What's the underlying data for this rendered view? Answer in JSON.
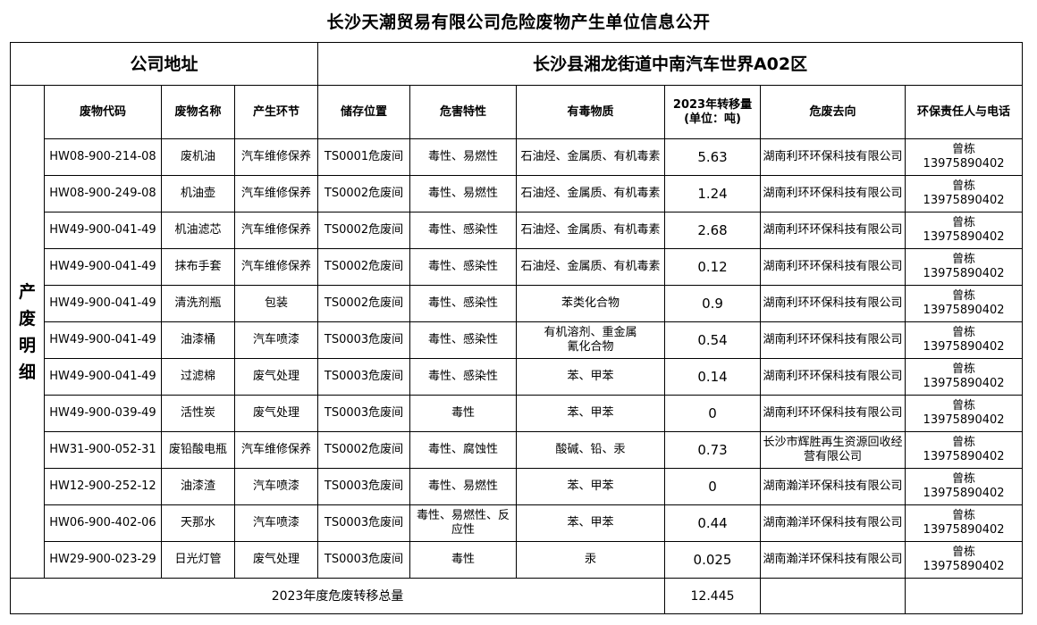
{
  "title": "长沙天潮贸易有限公司危险废物产生单位信息公开",
  "address_label": "公司地址",
  "address_value": "长沙县湘龙街道中南汽车世界A02区",
  "side_label": "产废明细",
  "headers": [
    "废物代码",
    "废物名称",
    "产生环节",
    "储存位置",
    "危害特性",
    "有毒物质",
    "2023年转移量\n(单位：吨)",
    "危废去向",
    "环保责任人与电话"
  ],
  "rows": [
    {
      "code": "HW08-900-214-08",
      "name": "废机油",
      "stage": "汽车维修保养",
      "storage": "TS0001危废间",
      "hazard": "毒性、易燃性",
      "toxic": "石油烃、金属质、有机毒素",
      "qty": "5.63",
      "dest": "湖南利环环保科技有限公司",
      "contact": "曾栋\n13975890402"
    },
    {
      "code": "HW08-900-249-08",
      "name": "机油壶",
      "stage": "汽车维修保养",
      "storage": "TS0002危废间",
      "hazard": "毒性、易燃性",
      "toxic": "石油烃、金属质、有机毒素",
      "qty": "1.24",
      "dest": "湖南利环环保科技有限公司",
      "contact": "曾栋\n13975890402"
    },
    {
      "code": "HW49-900-041-49",
      "name": "机油滤芯",
      "stage": "汽车维修保养",
      "storage": "TS0002危废间",
      "hazard": "毒性、感染性",
      "toxic": "石油烃、金属质、有机毒素",
      "qty": "2.68",
      "dest": "湖南利环环保科技有限公司",
      "contact": "曾栋\n13975890402"
    },
    {
      "code": "HW49-900-041-49",
      "name": "抹布手套",
      "stage": "汽车维修保养",
      "storage": "TS0002危废间",
      "hazard": "毒性、感染性",
      "toxic": "石油烃、金属质、有机毒素",
      "qty": "0.12",
      "dest": "湖南利环环保科技有限公司",
      "contact": "曾栋\n13975890402"
    },
    {
      "code": "HW49-900-041-49",
      "name": "清洗剂瓶",
      "stage": "包装",
      "storage": "TS0002危废间",
      "hazard": "毒性、感染性",
      "toxic": "苯类化合物",
      "qty": "0.9",
      "dest": "湖南利环环保科技有限公司",
      "contact": "曾栋\n13975890402"
    },
    {
      "code": "HW49-900-041-49",
      "name": "油漆桶",
      "stage": "汽车喷漆",
      "storage": "TS0003危废间",
      "hazard": "毒性、感染性",
      "toxic": "有机溶剂、重金属\n氰化合物",
      "qty": "0.54",
      "dest": "湖南利环环保科技有限公司",
      "contact": "曾栋\n13975890402"
    },
    {
      "code": "HW49-900-041-49",
      "name": "过滤棉",
      "stage": "废气处理",
      "storage": "TS0003危废间",
      "hazard": "毒性、感染性",
      "toxic": "苯、甲苯",
      "qty": "0.14",
      "dest": "湖南利环环保科技有限公司",
      "contact": "曾栋\n13975890402"
    },
    {
      "code": "HW49-900-039-49",
      "name": "活性炭",
      "stage": "废气处理",
      "storage": "TS0003危废间",
      "hazard": "毒性",
      "toxic": "苯、甲苯",
      "qty": "0",
      "dest": "湖南利环环保科技有限公司",
      "contact": "曾栋\n13975890402"
    },
    {
      "code": "HW31-900-052-31",
      "name": "废铅酸电瓶",
      "stage": "汽车维修保养",
      "storage": "TS0002危废间",
      "hazard": "毒性、腐蚀性",
      "toxic": "酸碱、铅、汞",
      "qty": "0.73",
      "dest": "长沙市辉胜再生资源回收经营有限公司",
      "contact": "曾栋\n13975890402"
    },
    {
      "code": "HW12-900-252-12",
      "name": "油漆渣",
      "stage": "汽车喷漆",
      "storage": "TS0003危废间",
      "hazard": "毒性、易燃性",
      "toxic": "苯、甲苯",
      "qty": "0",
      "dest": "湖南瀚洋环保科技有限公司",
      "contact": "曾栋\n13975890402"
    },
    {
      "code": "HW06-900-402-06",
      "name": "天那水",
      "stage": "汽车喷漆",
      "storage": "TS0003危废间",
      "hazard": "毒性、易燃性、反应性",
      "toxic": "苯、甲苯",
      "qty": "0.44",
      "dest": "湖南瀚洋环保科技有限公司",
      "contact": "曾栋\n13975890402"
    },
    {
      "code": "HW29-900-023-29",
      "name": "日光灯管",
      "stage": "废气处理",
      "storage": "TS0003危废间",
      "hazard": "毒性",
      "toxic": "汞",
      "qty": "0.025",
      "dest": "湖南瀚洋环保科技有限公司",
      "contact": "曾栋\n13975890402"
    }
  ],
  "total_label": "2023年度危废转移总量",
  "total_value": "12.445"
}
